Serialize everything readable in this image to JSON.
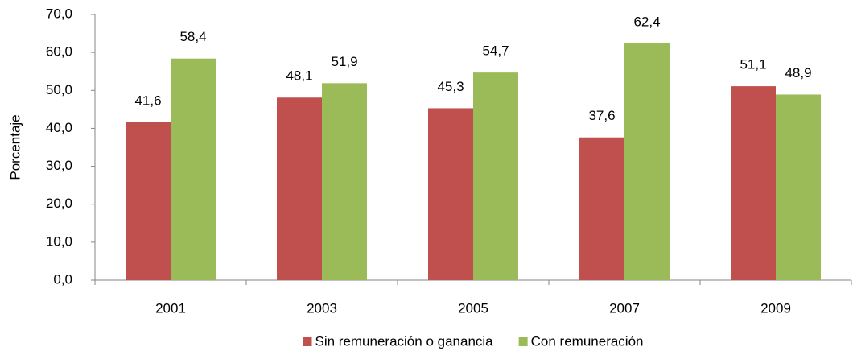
{
  "chart_data": {
    "type": "bar",
    "y_label": "Porcentaje",
    "categories": [
      "2001",
      "2003",
      "2005",
      "2007",
      "2009"
    ],
    "series": [
      {
        "name": "Sin remuneración o ganancia",
        "color": "#c0504d",
        "values": [
          41.6,
          48.1,
          45.3,
          37.6,
          51.1
        ],
        "value_labels": [
          "41,6",
          "48,1",
          "45,3",
          "37,6",
          "51,1"
        ]
      },
      {
        "name": "Con remuneración",
        "color": "#9bbb59",
        "values": [
          58.4,
          51.9,
          54.7,
          62.4,
          48.9
        ],
        "value_labels": [
          "58,4",
          "51,9",
          "54,7",
          "62,4",
          "48,9"
        ]
      }
    ],
    "ylim": [
      0,
      70
    ],
    "yticks": [
      {
        "value": 0,
        "label": "0,0"
      },
      {
        "value": 10,
        "label": "10,0"
      },
      {
        "value": 20,
        "label": "20,0"
      },
      {
        "value": 30,
        "label": "30,0"
      },
      {
        "value": 40,
        "label": "40,0"
      },
      {
        "value": 50,
        "label": "50,0"
      },
      {
        "value": 60,
        "label": "60,0"
      },
      {
        "value": 70,
        "label": "70,0"
      }
    ],
    "legend": "bottom"
  }
}
